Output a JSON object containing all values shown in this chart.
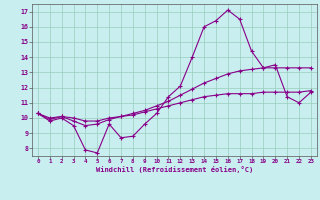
{
  "x": [
    0,
    1,
    2,
    3,
    4,
    5,
    6,
    7,
    8,
    9,
    10,
    11,
    12,
    13,
    14,
    15,
    16,
    17,
    18,
    19,
    20,
    21,
    22,
    23
  ],
  "line1": [
    10.3,
    9.8,
    10.0,
    9.5,
    7.9,
    7.7,
    9.6,
    8.7,
    8.8,
    9.6,
    10.3,
    11.4,
    12.1,
    14.0,
    16.0,
    16.4,
    17.1,
    16.5,
    14.4,
    13.3,
    13.5,
    11.4,
    11.0,
    11.7
  ],
  "line2": [
    10.3,
    9.9,
    10.1,
    9.8,
    9.5,
    9.6,
    9.9,
    10.1,
    10.3,
    10.5,
    10.8,
    11.1,
    11.5,
    11.9,
    12.3,
    12.6,
    12.9,
    13.1,
    13.2,
    13.3,
    13.3,
    13.3,
    13.3,
    13.3
  ],
  "line3": [
    10.3,
    10.0,
    10.1,
    10.0,
    9.8,
    9.8,
    10.0,
    10.1,
    10.2,
    10.4,
    10.6,
    10.8,
    11.0,
    11.2,
    11.4,
    11.5,
    11.6,
    11.6,
    11.6,
    11.7,
    11.7,
    11.7,
    11.7,
    11.8
  ],
  "line_color": "#880088",
  "bg_color": "#c8eef0",
  "grid_color": "#99ccbb",
  "xlabel": "Windchill (Refroidissement éolien,°C)",
  "xlim": [
    -0.5,
    23.5
  ],
  "ylim": [
    7.5,
    17.5
  ],
  "yticks": [
    8,
    9,
    10,
    11,
    12,
    13,
    14,
    15,
    16,
    17
  ],
  "xticks": [
    0,
    1,
    2,
    3,
    4,
    5,
    6,
    7,
    8,
    9,
    10,
    11,
    12,
    13,
    14,
    15,
    16,
    17,
    18,
    19,
    20,
    21,
    22,
    23
  ],
  "marker_size": 2.0,
  "lw": 0.8
}
